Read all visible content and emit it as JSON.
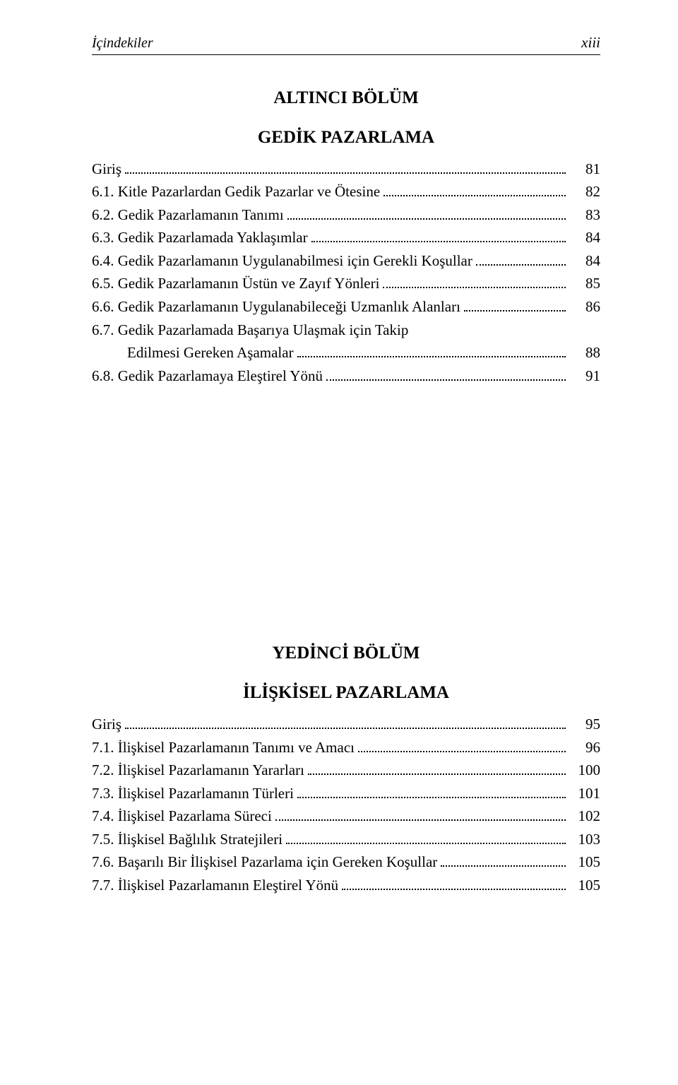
{
  "header": {
    "left": "İçindekiler",
    "right": "xiii"
  },
  "section1": {
    "title": "ALTINCI BÖLÜM",
    "subtitle": "GEDİK PAZARLAMA",
    "entries": [
      {
        "label": "Giriş",
        "page": "81",
        "indent": 0
      },
      {
        "label": "6.1. Kitle Pazarlardan Gedik Pazarlar ve Ötesine",
        "page": "82",
        "indent": 0
      },
      {
        "label": "6.2. Gedik Pazarlamanın Tanımı",
        "page": "83",
        "indent": 0
      },
      {
        "label": "6.3. Gedik Pazarlamada Yaklaşımlar",
        "page": "84",
        "indent": 0
      },
      {
        "label": "6.4. Gedik Pazarlamanın Uygulanabilmesi için Gerekli Koşullar",
        "page": "84",
        "indent": 0
      },
      {
        "label": "6.5. Gedik Pazarlamanın Üstün ve Zayıf Yönleri",
        "page": "85",
        "indent": 0
      },
      {
        "label": "6.6. Gedik Pazarlamanın Uygulanabileceği Uzmanlık Alanları",
        "page": "86",
        "indent": 0
      },
      {
        "label1": "6.7. Gedik Pazarlamada Başarıya Ulaşmak için Takip",
        "label2": "Edilmesi Gereken Aşamalar",
        "page": "88",
        "indent": 0,
        "wrap": true
      },
      {
        "label": "6.8. Gedik Pazarlamaya Eleştirel Yönü",
        "page": "91",
        "indent": 0
      }
    ]
  },
  "section2": {
    "title": "YEDİNCİ BÖLÜM",
    "subtitle": "İLİŞKİSEL PAZARLAMA",
    "entries": [
      {
        "label": "Giriş",
        "page": "95",
        "indent": 0
      },
      {
        "label": "7.1. İlişkisel Pazarlamanın Tanımı ve Amacı",
        "page": "96",
        "indent": 0
      },
      {
        "label": "7.2. İlişkisel Pazarlamanın Yararları",
        "page": "100",
        "indent": 0
      },
      {
        "label": "7.3. İlişkisel Pazarlamanın Türleri",
        "page": "101",
        "indent": 0
      },
      {
        "label": "7.4. İlişkisel Pazarlama Süreci",
        "page": "102",
        "indent": 0
      },
      {
        "label": "7.5. İlişkisel Bağlılık Stratejileri",
        "page": "103",
        "indent": 0
      },
      {
        "label": "7.6. Başarılı Bir İlişkisel Pazarlama için Gereken Koşullar",
        "page": "105",
        "indent": 0
      },
      {
        "label": "7.7. İlişkisel Pazarlamanın Eleştirel Yönü",
        "page": "105",
        "indent": 0
      }
    ]
  }
}
